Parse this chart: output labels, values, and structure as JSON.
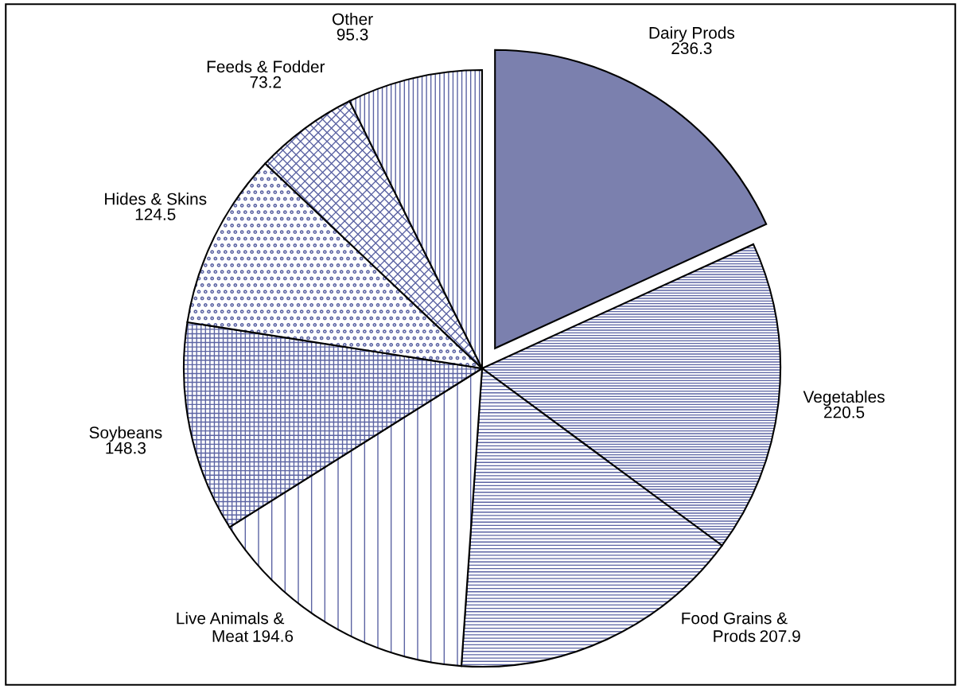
{
  "chart_data": {
    "type": "pie",
    "categories": [
      "Dairy Prods",
      "Vegetables",
      "Food Grains &\nProds",
      "Live Animals &\nMeat",
      "Soybeans",
      "Hides & Skins",
      "Feeds & Fodder",
      "Other"
    ],
    "values": [
      236.3,
      220.5,
      207.9,
      194.6,
      148.3,
      124.5,
      73.2,
      95.3
    ],
    "colors": [
      "#7b80ae",
      "#5b63a3",
      "#5b63a3",
      "#5b63a3",
      "#5b63a3",
      "#5b63a3",
      "#5b63a3",
      "#5b63a3"
    ],
    "data_labels": true,
    "legend": false
  }
}
